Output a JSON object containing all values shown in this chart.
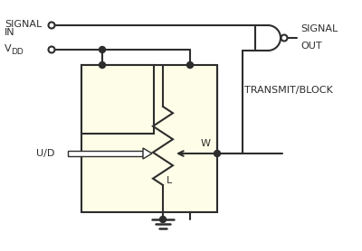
{
  "bg_color": "#ffffff",
  "line_color": "#2d2d2d",
  "box_fill": "#fefee8",
  "figsize": [
    4.0,
    2.78
  ],
  "dpi": 100,
  "label_fontsize": 8.0,
  "small_fontsize": 6.5,
  "transmit_label": "TRANSMIT/BLOCK",
  "ud_label": "U/D",
  "w_label": "W",
  "l_label": "L"
}
